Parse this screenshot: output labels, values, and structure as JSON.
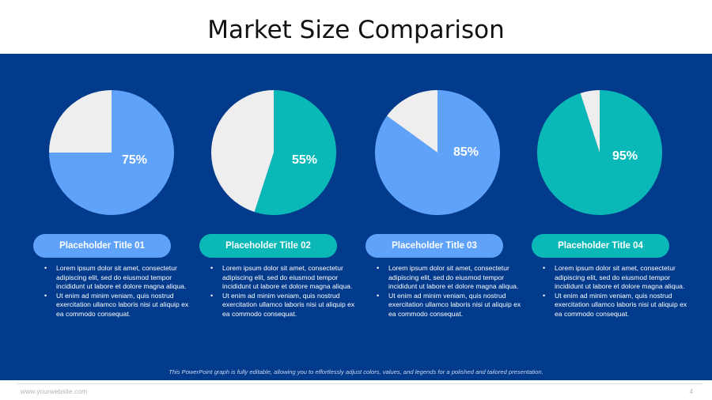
{
  "title": "Market Size Comparison",
  "chart_data": {
    "type": "pie",
    "charts": [
      {
        "value_label": "75%",
        "slices": [
          75,
          25
        ],
        "accent": "#5ea2fa",
        "rest": "#eeeeef"
      },
      {
        "value_label": "55%",
        "slices": [
          55,
          45
        ],
        "accent": "#0ab9b7",
        "rest": "#eeeeef"
      },
      {
        "value_label": "85%",
        "slices": [
          85,
          15
        ],
        "accent": "#5ea2fa",
        "rest": "#eeeeef"
      },
      {
        "value_label": "95%",
        "slices": [
          95,
          5
        ],
        "accent": "#0ab9b7",
        "rest": "#eeeeef"
      }
    ]
  },
  "columns": [
    {
      "title": "Placeholder Title 01",
      "color": "#5ea2fa",
      "bullets": [
        "Lorem ipsum dolor sit amet, consectetur adipiscing elit, sed do eiusmod tempor incididunt ut labore et dolore magna aliqua.",
        "Ut enim ad minim veniam, quis nostrud exercitation ullamco laboris nisi ut aliquip ex ea commodo consequat."
      ]
    },
    {
      "title": "Placeholder Title 02",
      "color": "#0ab9b7",
      "bullets": [
        "Lorem ipsum dolor sit amet, consectetur adipiscing elit, sed do eiusmod tempor incididunt ut labore et dolore magna aliqua.",
        "Ut enim ad minim veniam, quis nostrud exercitation ullamco laboris nisi ut aliquip ex ea commodo consequat."
      ]
    },
    {
      "title": "Placeholder Title 03",
      "color": "#5ea2fa",
      "bullets": [
        "Lorem ipsum dolor sit amet, consectetur adipiscing elit, sed do eiusmod tempor incididunt ut labore et dolore magna aliqua.",
        "Ut enim ad minim veniam, quis nostrud exercitation ullamco laboris nisi ut aliquip ex ea commodo consequat."
      ]
    },
    {
      "title": "Placeholder Title 04",
      "color": "#0ab9b7",
      "bullets": [
        "Lorem ipsum dolor sit amet, consectetur adipiscing elit, sed do eiusmod tempor incididunt ut labore et dolore magna aliqua.",
        "Ut enim ad minim veniam, quis nostrud exercitation ullamco laboris nisi ut aliquip ex ea commodo consequat."
      ]
    }
  ],
  "note": "This PowerPoint graph is fully editable, allowing you to effortlessly adjust colors, values, and legends for a polished and tailored presentation.",
  "footer": {
    "website": "www.yourwebsite.com",
    "page": "4"
  }
}
